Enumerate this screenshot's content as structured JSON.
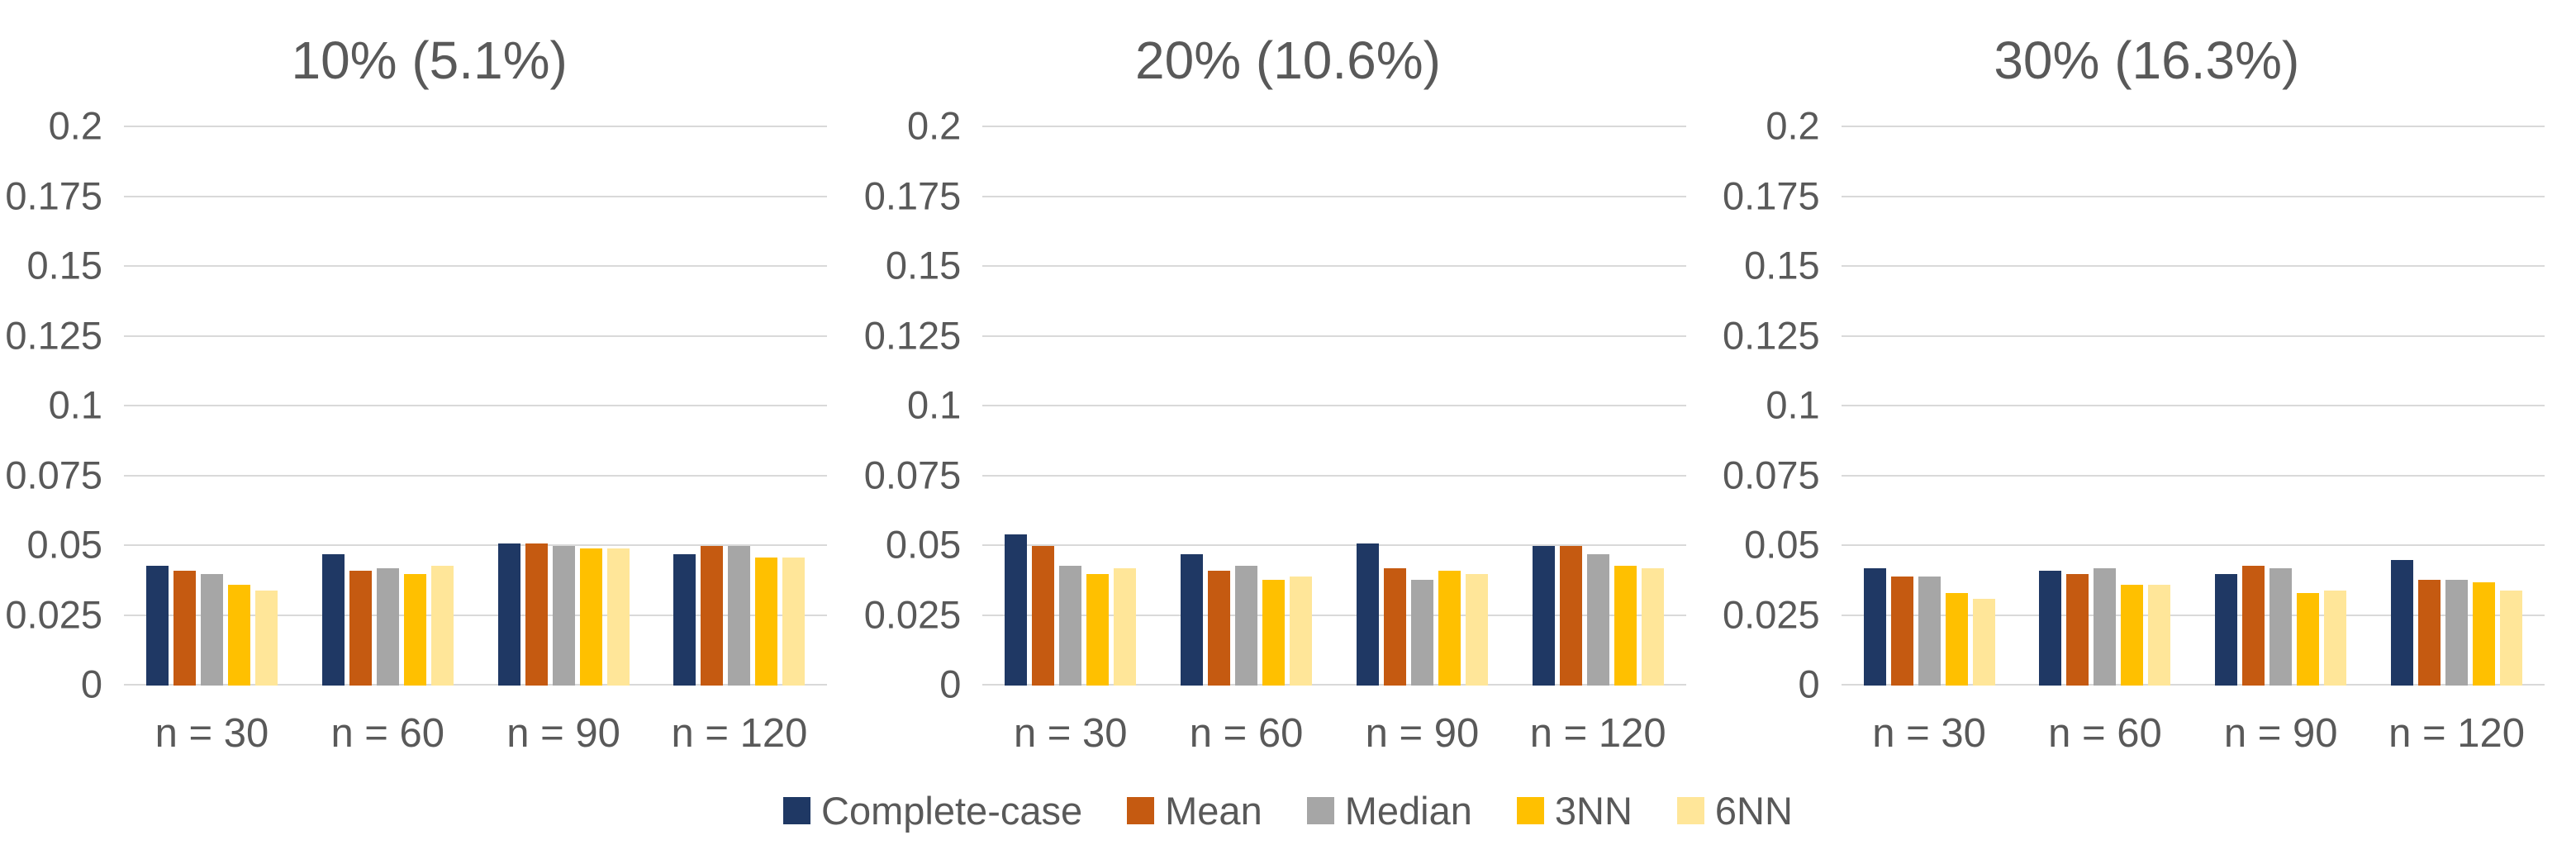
{
  "page": {
    "background": "#FFFFFF",
    "text_color": "#595959",
    "gridline_color": "#D9D9D9"
  },
  "legend": {
    "position": "bottom-center",
    "items": [
      {
        "label": "Complete-case",
        "color": "#1F3864"
      },
      {
        "label": "Mean",
        "color": "#C55A11"
      },
      {
        "label": "Median",
        "color": "#A6A6A6"
      },
      {
        "label": "3NN",
        "color": "#FFC000"
      },
      {
        "label": "6NN",
        "color": "#FFE699"
      }
    ]
  },
  "chart_data": [
    {
      "type": "bar",
      "title": "10% (5.1%)",
      "categories": [
        "n = 30",
        "n = 60",
        "n = 90",
        "n = 120"
      ],
      "series": [
        {
          "name": "Complete-case",
          "color": "#1F3864",
          "values": [
            0.043,
            0.047,
            0.051,
            0.047
          ]
        },
        {
          "name": "Mean",
          "color": "#C55A11",
          "values": [
            0.041,
            0.041,
            0.051,
            0.05
          ]
        },
        {
          "name": "Median",
          "color": "#A6A6A6",
          "values": [
            0.04,
            0.042,
            0.05,
            0.05
          ]
        },
        {
          "name": "3NN",
          "color": "#FFC000",
          "values": [
            0.036,
            0.04,
            0.049,
            0.046
          ]
        },
        {
          "name": "6NN",
          "color": "#FFE699",
          "values": [
            0.034,
            0.043,
            0.049,
            0.046
          ]
        }
      ],
      "xlabel": "",
      "ylabel": "",
      "ylim": [
        0,
        0.2
      ],
      "yticks": [
        "0.2",
        "0.175",
        "0.15",
        "0.125",
        "0.1",
        "0.075",
        "0.05",
        "0.025",
        "0"
      ],
      "grid": true,
      "legend_position": "shared-bottom"
    },
    {
      "type": "bar",
      "title": "20% (10.6%)",
      "categories": [
        "n = 30",
        "n = 60",
        "n = 90",
        "n = 120"
      ],
      "series": [
        {
          "name": "Complete-case",
          "color": "#1F3864",
          "values": [
            0.054,
            0.047,
            0.051,
            0.05
          ]
        },
        {
          "name": "Mean",
          "color": "#C55A11",
          "values": [
            0.05,
            0.041,
            0.042,
            0.05
          ]
        },
        {
          "name": "Median",
          "color": "#A6A6A6",
          "values": [
            0.043,
            0.043,
            0.038,
            0.047
          ]
        },
        {
          "name": "3NN",
          "color": "#FFC000",
          "values": [
            0.04,
            0.038,
            0.041,
            0.043
          ]
        },
        {
          "name": "6NN",
          "color": "#FFE699",
          "values": [
            0.042,
            0.039,
            0.04,
            0.042
          ]
        }
      ],
      "xlabel": "",
      "ylabel": "",
      "ylim": [
        0,
        0.2
      ],
      "yticks": [
        "0.2",
        "0.175",
        "0.15",
        "0.125",
        "0.1",
        "0.075",
        "0.05",
        "0.025",
        "0"
      ],
      "grid": true,
      "legend_position": "shared-bottom"
    },
    {
      "type": "bar",
      "title": "30% (16.3%)",
      "categories": [
        "n = 30",
        "n = 60",
        "n = 90",
        "n = 120"
      ],
      "series": [
        {
          "name": "Complete-case",
          "color": "#1F3864",
          "values": [
            0.042,
            0.041,
            0.04,
            0.045
          ]
        },
        {
          "name": "Mean",
          "color": "#C55A11",
          "values": [
            0.039,
            0.04,
            0.043,
            0.038
          ]
        },
        {
          "name": "Median",
          "color": "#A6A6A6",
          "values": [
            0.039,
            0.042,
            0.042,
            0.038
          ]
        },
        {
          "name": "3NN",
          "color": "#FFC000",
          "values": [
            0.033,
            0.036,
            0.033,
            0.037
          ]
        },
        {
          "name": "6NN",
          "color": "#FFE699",
          "values": [
            0.031,
            0.036,
            0.034,
            0.034
          ]
        }
      ],
      "xlabel": "",
      "ylabel": "",
      "ylim": [
        0,
        0.2
      ],
      "yticks": [
        "0.2",
        "0.175",
        "0.15",
        "0.125",
        "0.1",
        "0.075",
        "0.05",
        "0.025",
        "0"
      ],
      "grid": true,
      "legend_position": "shared-bottom"
    }
  ]
}
